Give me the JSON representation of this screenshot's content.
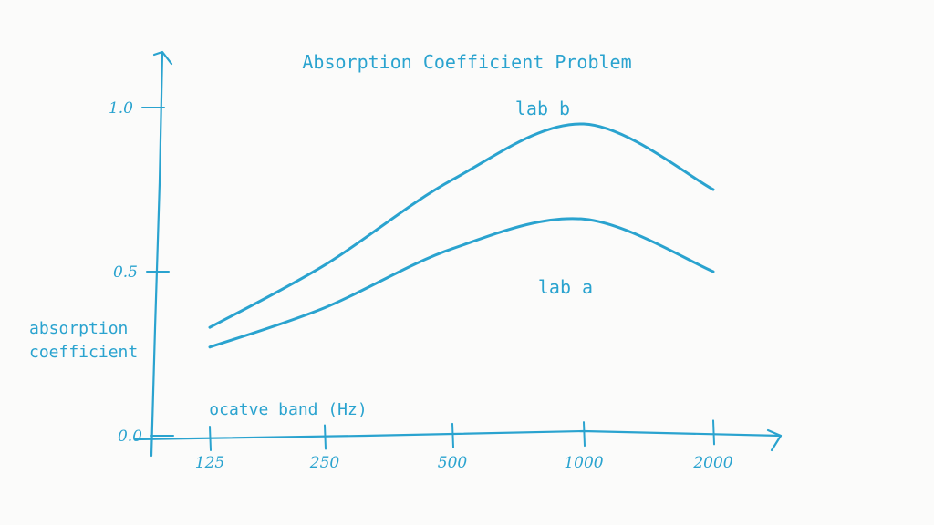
{
  "chart_data": {
    "type": "line",
    "title": "Absorption Coefficient Problem",
    "xlabel": "ocatve band (Hz)",
    "ylabel_lines": [
      "absorption",
      "coefficient"
    ],
    "categories": [
      "125",
      "250",
      "500",
      "1000",
      "2000"
    ],
    "x_tick_labels": [
      "125",
      "250",
      "500",
      "1000",
      "2000"
    ],
    "y_ticks": [
      0.0,
      0.5,
      1.0
    ],
    "y_tick_labels": [
      "0.0",
      "0.5",
      "1.0"
    ],
    "ylim": [
      0,
      1.0
    ],
    "grid": false,
    "color": "#2aa3cf",
    "series": [
      {
        "name": "lab b",
        "values": [
          0.33,
          0.52,
          0.78,
          0.95,
          0.75
        ]
      },
      {
        "name": "lab a",
        "values": [
          0.27,
          0.39,
          0.57,
          0.66,
          0.5
        ]
      }
    ]
  }
}
